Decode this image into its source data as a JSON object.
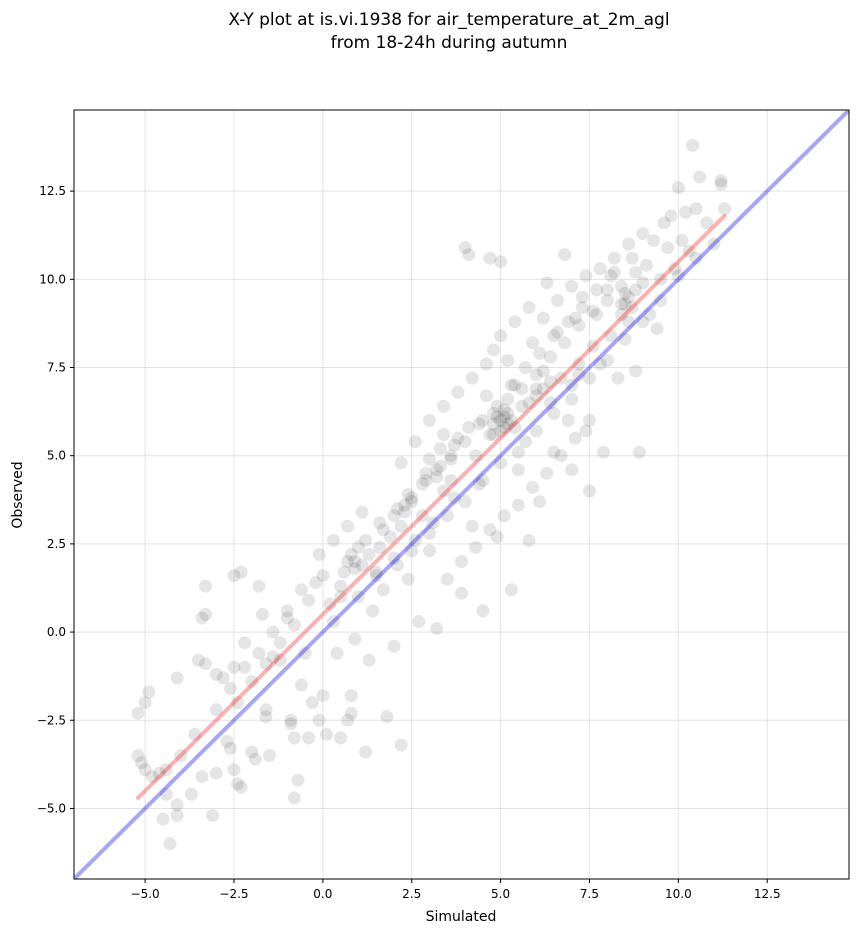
{
  "chart_data": {
    "type": "scatter",
    "title_line1": "X-Y plot at is.vi.1938 for air_temperature_at_2m_agl",
    "title_line2": "from 18-24h during autumn",
    "xlabel": "Simulated",
    "ylabel": "Observed",
    "xlim": [
      -7.0,
      14.8
    ],
    "ylim": [
      -7.0,
      14.8
    ],
    "xticks": [
      -5.0,
      -2.5,
      0.0,
      2.5,
      5.0,
      7.5,
      10.0,
      12.5
    ],
    "yticks": [
      -5.0,
      -2.5,
      0.0,
      2.5,
      5.0,
      7.5,
      10.0,
      12.5
    ],
    "xtick_labels": [
      "−5.0",
      "−2.5",
      "0.0",
      "2.5",
      "5.0",
      "7.5",
      "10.0",
      "12.5"
    ],
    "ytick_labels": [
      "−5.0",
      "−2.5",
      "0.0",
      "2.5",
      "5.0",
      "7.5",
      "10.0",
      "12.5"
    ],
    "grid": true,
    "marker_color": "#000000",
    "identity_line": {
      "color": "#0000dd",
      "from": [
        -7.0,
        -7.0
      ],
      "to": [
        14.8,
        14.8
      ]
    },
    "fit_line": {
      "color": "#ee2222",
      "from": [
        -5.2,
        -4.7
      ],
      "to": [
        11.3,
        11.8
      ]
    },
    "points": [
      [
        -5.2,
        -3.5
      ],
      [
        -5.1,
        -3.7
      ],
      [
        -5.0,
        -3.9
      ],
      [
        -4.9,
        -1.7
      ],
      [
        -5.0,
        -2.0
      ],
      [
        -5.2,
        -2.3
      ],
      [
        -4.8,
        -4.1
      ],
      [
        -4.6,
        -4.0
      ],
      [
        -4.5,
        -5.3
      ],
      [
        -4.4,
        -4.6
      ],
      [
        -4.3,
        -6.0
      ],
      [
        -4.1,
        -4.9
      ],
      [
        -4.1,
        -5.2
      ],
      [
        -4.1,
        -1.3
      ],
      [
        -3.7,
        -4.6
      ],
      [
        -3.5,
        -0.8
      ],
      [
        -3.4,
        -4.1
      ],
      [
        -3.3,
        -0.9
      ],
      [
        -3.3,
        0.5
      ],
      [
        -3.4,
        0.4
      ],
      [
        -3.3,
        1.3
      ],
      [
        -3.1,
        -5.2
      ],
      [
        -3.0,
        -4.0
      ],
      [
        -3.0,
        -1.2
      ],
      [
        -2.8,
        -1.3
      ],
      [
        -2.7,
        -3.1
      ],
      [
        -2.6,
        -3.3
      ],
      [
        -2.5,
        -1.0
      ],
      [
        -2.5,
        -3.9
      ],
      [
        -2.4,
        -4.3
      ],
      [
        -2.3,
        -4.4
      ],
      [
        -2.3,
        1.7
      ],
      [
        -2.5,
        1.6
      ],
      [
        -2.2,
        -0.3
      ],
      [
        -2.0,
        -3.4
      ],
      [
        -1.9,
        -3.6
      ],
      [
        -1.8,
        1.3
      ],
      [
        -1.7,
        0.5
      ],
      [
        -1.6,
        -2.2
      ],
      [
        -1.6,
        -2.4
      ],
      [
        -1.5,
        -3.5
      ],
      [
        -1.4,
        -0.7
      ],
      [
        -1.2,
        -0.8
      ],
      [
        -1.0,
        0.6
      ],
      [
        -0.9,
        -2.5
      ],
      [
        -0.9,
        -2.6
      ],
      [
        -0.8,
        -3.0
      ],
      [
        -0.8,
        -4.7
      ],
      [
        -0.7,
        -4.2
      ],
      [
        -0.6,
        -1.5
      ],
      [
        -0.5,
        -0.6
      ],
      [
        -0.4,
        -3.0
      ],
      [
        -0.3,
        -2.0
      ],
      [
        -0.2,
        1.4
      ],
      [
        -0.1,
        2.2
      ],
      [
        -0.1,
        -2.5
      ],
      [
        0.1,
        -2.9
      ],
      [
        0.0,
        -1.8
      ],
      [
        0.2,
        0.8
      ],
      [
        0.3,
        0.3
      ],
      [
        0.4,
        -0.6
      ],
      [
        0.5,
        1.0
      ],
      [
        0.5,
        -3.0
      ],
      [
        0.6,
        1.7
      ],
      [
        0.7,
        2.0
      ],
      [
        0.7,
        -2.5
      ],
      [
        0.8,
        -2.3
      ],
      [
        0.8,
        -1.8
      ],
      [
        0.9,
        -0.2
      ],
      [
        1.0,
        2.4
      ],
      [
        1.1,
        1.9
      ],
      [
        1.2,
        -3.4
      ],
      [
        1.3,
        -0.8
      ],
      [
        1.4,
        0.6
      ],
      [
        1.5,
        1.7
      ],
      [
        1.6,
        2.4
      ],
      [
        1.7,
        1.2
      ],
      [
        1.8,
        -2.4
      ],
      [
        1.9,
        2.7
      ],
      [
        2.0,
        -0.4
      ],
      [
        2.1,
        1.9
      ],
      [
        2.2,
        -3.2
      ],
      [
        2.3,
        3.6
      ],
      [
        2.4,
        1.5
      ],
      [
        2.6,
        2.6
      ],
      [
        2.7,
        0.3
      ],
      [
        2.8,
        3.3
      ],
      [
        2.9,
        4.5
      ],
      [
        3.0,
        2.3
      ],
      [
        3.1,
        3.1
      ],
      [
        3.2,
        0.1
      ],
      [
        3.3,
        5.2
      ],
      [
        3.4,
        4.0
      ],
      [
        3.5,
        1.5
      ],
      [
        3.6,
        4.9
      ],
      [
        3.7,
        3.8
      ],
      [
        3.8,
        5.5
      ],
      [
        3.9,
        1.1
      ],
      [
        4.0,
        10.9
      ],
      [
        4.1,
        10.7
      ],
      [
        4.2,
        3.0
      ],
      [
        4.3,
        5.0
      ],
      [
        4.4,
        4.2
      ],
      [
        4.5,
        0.6
      ],
      [
        4.6,
        6.7
      ],
      [
        4.7,
        10.6
      ],
      [
        4.8,
        5.6
      ],
      [
        4.9,
        2.7
      ],
      [
        5.0,
        10.5
      ],
      [
        5.1,
        6.1
      ],
      [
        5.2,
        5.9
      ],
      [
        5.3,
        1.2
      ],
      [
        5.4,
        7.0
      ],
      [
        5.5,
        4.6
      ],
      [
        5.6,
        6.4
      ],
      [
        5.7,
        5.4
      ],
      [
        5.8,
        2.6
      ],
      [
        5.9,
        8.2
      ],
      [
        6.0,
        6.9
      ],
      [
        6.1,
        3.7
      ],
      [
        6.2,
        7.4
      ],
      [
        6.3,
        9.9
      ],
      [
        6.4,
        6.5
      ],
      [
        6.5,
        5.1
      ],
      [
        6.6,
        8.5
      ],
      [
        6.7,
        7.2
      ],
      [
        6.8,
        10.7
      ],
      [
        6.9,
        6.0
      ],
      [
        7.0,
        4.6
      ],
      [
        7.1,
        8.9
      ],
      [
        7.2,
        7.3
      ],
      [
        7.3,
        9.5
      ],
      [
        7.4,
        5.7
      ],
      [
        7.5,
        4.0
      ],
      [
        7.6,
        8.1
      ],
      [
        7.7,
        9.0
      ],
      [
        7.8,
        7.6
      ],
      [
        7.9,
        5.1
      ],
      [
        8.0,
        9.7
      ],
      [
        8.1,
        8.4
      ],
      [
        8.2,
        10.2
      ],
      [
        8.3,
        7.2
      ],
      [
        8.4,
        9.3
      ],
      [
        8.5,
        9.6
      ],
      [
        8.6,
        8.8
      ],
      [
        8.7,
        10.6
      ],
      [
        8.8,
        7.4
      ],
      [
        8.9,
        5.1
      ],
      [
        9.0,
        9.9
      ],
      [
        9.1,
        10.4
      ],
      [
        9.2,
        9.0
      ],
      [
        9.3,
        11.1
      ],
      [
        9.4,
        8.6
      ],
      [
        9.5,
        10.0
      ],
      [
        9.6,
        11.6
      ],
      [
        9.7,
        10.9
      ],
      [
        9.8,
        11.8
      ],
      [
        9.9,
        10.3
      ],
      [
        10.0,
        12.6
      ],
      [
        10.1,
        11.1
      ],
      [
        10.2,
        11.9
      ],
      [
        10.3,
        10.8
      ],
      [
        10.4,
        13.8
      ],
      [
        10.5,
        12.0
      ],
      [
        10.6,
        12.9
      ],
      [
        10.8,
        11.6
      ],
      [
        11.0,
        11.0
      ],
      [
        11.2,
        12.8
      ],
      [
        11.3,
        12.0
      ],
      [
        11.2,
        12.7
      ],
      [
        1.2,
        2.6
      ],
      [
        1.6,
        3.1
      ],
      [
        2.0,
        3.3
      ],
      [
        2.4,
        3.9
      ],
      [
        2.8,
        4.2
      ],
      [
        3.2,
        4.6
      ],
      [
        3.6,
        5.0
      ],
      [
        4.0,
        5.4
      ],
      [
        4.4,
        5.9
      ],
      [
        4.8,
        6.2
      ],
      [
        5.2,
        6.6
      ],
      [
        5.6,
        6.9
      ],
      [
        6.0,
        7.3
      ],
      [
        6.4,
        7.8
      ],
      [
        6.8,
        8.2
      ],
      [
        7.2,
        8.7
      ],
      [
        7.6,
        9.1
      ],
      [
        8.0,
        9.4
      ],
      [
        8.4,
        9.8
      ],
      [
        8.8,
        10.2
      ],
      [
        0.5,
        1.3
      ],
      [
        0.9,
        1.8
      ],
      [
        1.3,
        2.2
      ],
      [
        1.7,
        2.9
      ],
      [
        2.1,
        3.5
      ],
      [
        2.5,
        3.8
      ],
      [
        2.9,
        4.3
      ],
      [
        3.3,
        4.7
      ],
      [
        3.7,
        5.3
      ],
      [
        4.1,
        5.8
      ],
      [
        4.5,
        6.0
      ],
      [
        4.9,
        6.4
      ],
      [
        5.3,
        7.0
      ],
      [
        5.7,
        7.5
      ],
      [
        6.1,
        7.9
      ],
      [
        6.5,
        8.4
      ],
      [
        6.9,
        8.8
      ],
      [
        7.3,
        9.2
      ],
      [
        7.7,
        9.7
      ],
      [
        8.1,
        10.1
      ],
      [
        1.0,
        1.0
      ],
      [
        1.5,
        1.6
      ],
      [
        2.0,
        2.1
      ],
      [
        2.5,
        2.3
      ],
      [
        3.0,
        2.8
      ],
      [
        3.5,
        3.3
      ],
      [
        4.0,
        3.7
      ],
      [
        4.5,
        4.3
      ],
      [
        5.0,
        4.8
      ],
      [
        5.5,
        5.1
      ],
      [
        6.0,
        5.7
      ],
      [
        6.5,
        6.2
      ],
      [
        7.0,
        6.6
      ],
      [
        7.5,
        7.2
      ],
      [
        8.0,
        7.7
      ],
      [
        8.5,
        8.3
      ],
      [
        9.0,
        8.8
      ],
      [
        9.5,
        9.4
      ],
      [
        10.0,
        10.1
      ],
      [
        10.5,
        10.6
      ],
      [
        2.2,
        4.8
      ],
      [
        2.6,
        5.4
      ],
      [
        3.0,
        6.0
      ],
      [
        3.4,
        6.4
      ],
      [
        3.8,
        6.8
      ],
      [
        4.2,
        7.2
      ],
      [
        4.6,
        7.6
      ],
      [
        5.0,
        8.4
      ],
      [
        5.4,
        8.8
      ],
      [
        5.8,
        9.2
      ],
      [
        3.9,
        2.0
      ],
      [
        4.3,
        2.4
      ],
      [
        4.7,
        2.9
      ],
      [
        5.1,
        3.3
      ],
      [
        5.5,
        3.6
      ],
      [
        5.9,
        4.1
      ],
      [
        6.3,
        4.5
      ],
      [
        6.7,
        5.0
      ],
      [
        7.1,
        5.5
      ],
      [
        7.5,
        6.0
      ],
      [
        0.3,
        2.6
      ],
      [
        0.7,
        3.0
      ],
      [
        1.1,
        3.4
      ],
      [
        0.0,
        1.6
      ],
      [
        -0.4,
        0.9
      ],
      [
        -0.8,
        0.2
      ],
      [
        -1.2,
        -0.3
      ],
      [
        -1.6,
        -0.9
      ],
      [
        -2.0,
        -1.4
      ],
      [
        -2.4,
        -2.0
      ],
      [
        -0.6,
        1.2
      ],
      [
        -1.0,
        0.4
      ],
      [
        -1.4,
        0.0
      ],
      [
        -1.8,
        -0.6
      ],
      [
        -2.2,
        -1.0
      ],
      [
        -2.6,
        -1.6
      ],
      [
        -3.0,
        -2.2
      ],
      [
        -3.6,
        -2.9
      ],
      [
        -4.0,
        -3.5
      ],
      [
        -4.4,
        -3.9
      ],
      [
        4.8,
        8.0
      ],
      [
        5.2,
        7.7
      ],
      [
        6.2,
        8.9
      ],
      [
        6.6,
        9.4
      ],
      [
        7.0,
        9.8
      ],
      [
        7.4,
        10.1
      ],
      [
        7.8,
        10.3
      ],
      [
        8.2,
        10.6
      ],
      [
        8.6,
        11.0
      ],
      [
        9.0,
        11.3
      ],
      [
        5.0,
        6.0
      ],
      [
        5.1,
        5.8
      ],
      [
        4.9,
        6.1
      ],
      [
        5.0,
        5.7
      ],
      [
        5.2,
        6.2
      ],
      [
        4.8,
        5.9
      ],
      [
        5.3,
        6.0
      ],
      [
        4.7,
        5.6
      ],
      [
        5.1,
        6.3
      ],
      [
        5.4,
        5.8
      ],
      [
        8.5,
        9.3
      ],
      [
        8.6,
        9.5
      ],
      [
        8.7,
        9.2
      ],
      [
        8.4,
        9.0
      ],
      [
        8.8,
        9.7
      ],
      [
        2.3,
        3.4
      ],
      [
        2.5,
        3.7
      ],
      [
        2.2,
        3.0
      ],
      [
        0.8,
        2.2
      ],
      [
        0.9,
        2.0
      ],
      [
        6.0,
        6.7
      ],
      [
        6.2,
        6.9
      ],
      [
        5.8,
        6.5
      ],
      [
        6.4,
        7.1
      ],
      [
        7.0,
        7.0
      ],
      [
        7.2,
        7.6
      ],
      [
        3.0,
        4.9
      ],
      [
        3.2,
        4.4
      ],
      [
        3.4,
        5.6
      ],
      [
        3.6,
        4.3
      ]
    ]
  }
}
